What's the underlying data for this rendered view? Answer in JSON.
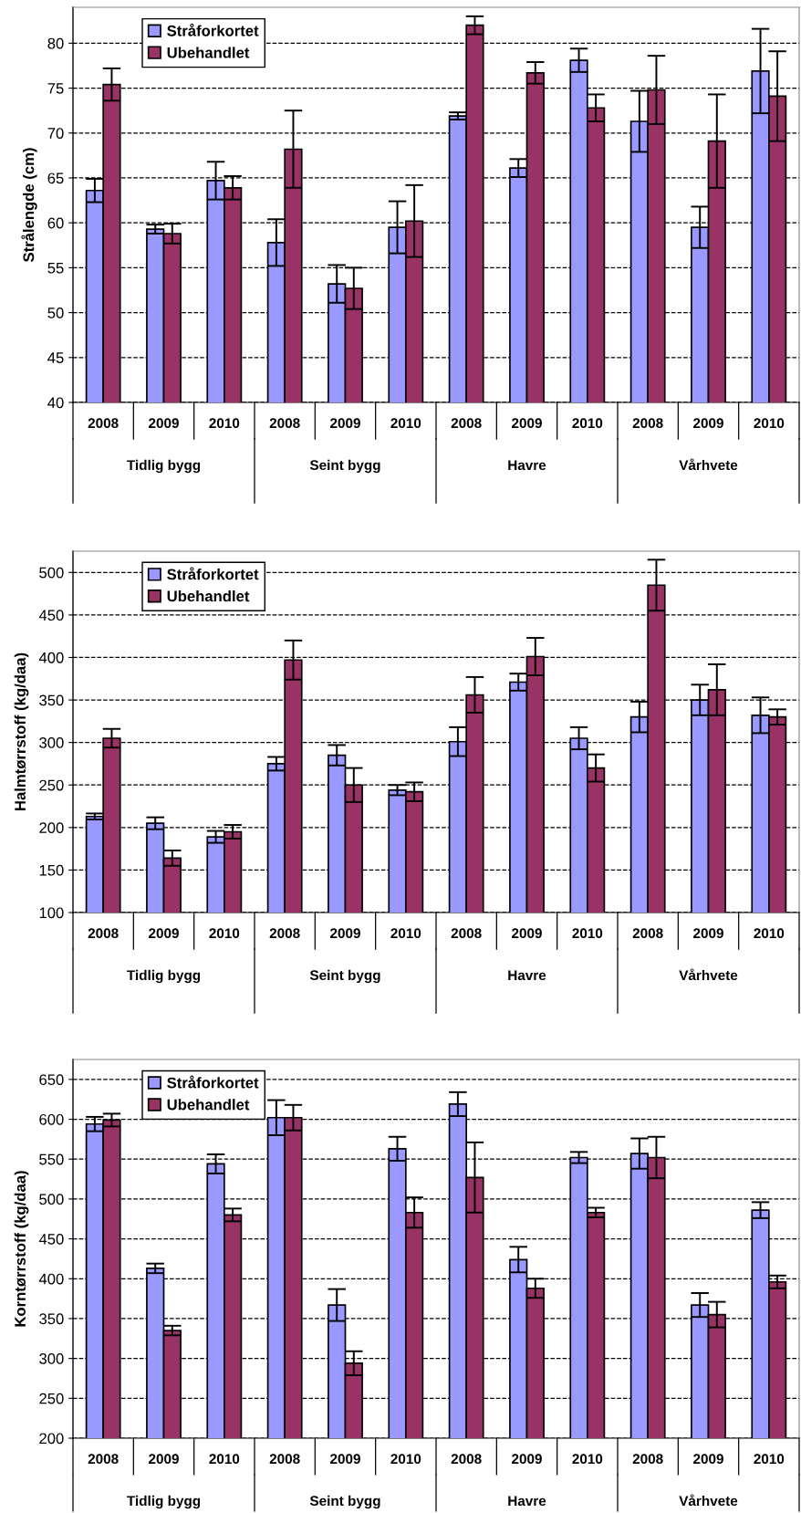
{
  "chart_data": [
    {
      "type": "bar",
      "ylabel": "Strålengde (cm)",
      "categories": [
        "2008",
        "2009",
        "2010",
        "2008",
        "2009",
        "2010",
        "2008",
        "2009",
        "2010",
        "2008",
        "2009",
        "2010"
      ],
      "annotations": [
        "Tidlig bygg",
        "Seint bygg",
        "Havre",
        "Vårhvete"
      ],
      "series": [
        {
          "name": "Stråforkortet",
          "color": "#9999ff",
          "values": [
            63.6,
            59.3,
            64.7,
            57.8,
            53.2,
            59.5,
            71.9,
            66.1,
            78.1,
            71.3,
            59.5,
            76.9
          ],
          "errors": [
            1.3,
            0.5,
            2.1,
            2.6,
            2.1,
            2.9,
            0.4,
            1.0,
            1.3,
            3.4,
            2.3,
            4.7
          ]
        },
        {
          "name": "Ubehandlet",
          "color": "#993366",
          "values": [
            75.4,
            58.8,
            63.9,
            68.2,
            52.7,
            60.2,
            82.0,
            76.7,
            72.8,
            74.8,
            69.1,
            74.1
          ],
          "errors": [
            1.8,
            1.1,
            1.3,
            4.3,
            2.3,
            4.0,
            1.0,
            1.2,
            1.5,
            3.8,
            5.2,
            5.0
          ]
        }
      ],
      "ylim": [
        40,
        84
      ],
      "yticks": [
        40,
        45,
        50,
        55,
        60,
        65,
        70,
        75,
        80
      ],
      "grid": "y",
      "line_style": "dashed",
      "legend": "top left"
    },
    {
      "type": "bar",
      "ylabel": "Halmtørrstoff (kg/daa)",
      "categories": [
        "2008",
        "2009",
        "2010",
        "2008",
        "2009",
        "2010",
        "2008",
        "2009",
        "2010",
        "2008",
        "2009",
        "2010"
      ],
      "annotations": [
        "Tidlig bygg",
        "Seint bygg",
        "Havre",
        "Vårhvete"
      ],
      "series": [
        {
          "name": "Stråforkortet",
          "color": "#9999ff",
          "values": [
            213,
            205,
            189,
            275,
            285,
            244,
            301,
            371,
            305,
            330,
            350,
            332
          ],
          "errors": [
            3.5,
            7,
            7,
            8,
            12,
            6,
            17,
            10,
            13,
            18,
            18,
            21
          ]
        },
        {
          "name": "Ubehandlet",
          "color": "#993366",
          "values": [
            305,
            164,
            195,
            397,
            250,
            242,
            356,
            401,
            270,
            485,
            362,
            330
          ],
          "errors": [
            11,
            9,
            8,
            23,
            20,
            11,
            21,
            22,
            16,
            30,
            30,
            9
          ]
        }
      ],
      "ylim": [
        100,
        525
      ],
      "yticks": [
        100,
        150,
        200,
        250,
        300,
        350,
        400,
        450,
        500
      ],
      "grid": "y",
      "line_style": "dashed",
      "legend": "top left"
    },
    {
      "type": "bar",
      "ylabel": "Korntørrstoff (kg/daa)",
      "categories": [
        "2008",
        "2009",
        "2010",
        "2008",
        "2009",
        "2010",
        "2008",
        "2009",
        "2010",
        "2008",
        "2009",
        "2010"
      ],
      "annotations": [
        "Tidlig bygg",
        "Seint bygg",
        "Havre",
        "Vårhvete"
      ],
      "series": [
        {
          "name": "Stråforkortet",
          "color": "#9999ff",
          "values": [
            594,
            413,
            544,
            602,
            367,
            563,
            619,
            424,
            552,
            557,
            367,
            486
          ],
          "errors": [
            9,
            6,
            12,
            22,
            20,
            15,
            15,
            16,
            7,
            19,
            15,
            10
          ]
        },
        {
          "name": "Ubehandlet",
          "color": "#993366",
          "values": [
            599,
            335,
            480,
            602,
            294,
            483,
            527,
            388,
            483,
            552,
            355,
            396
          ],
          "errors": [
            8,
            6,
            8,
            16,
            15,
            19,
            44,
            12,
            6,
            26,
            16,
            8
          ]
        }
      ],
      "ylim": [
        200,
        675
      ],
      "yticks": [
        200,
        250,
        300,
        350,
        400,
        450,
        500,
        550,
        600,
        650
      ],
      "grid": "y",
      "line_style": "dashed",
      "legend": "top left"
    }
  ]
}
